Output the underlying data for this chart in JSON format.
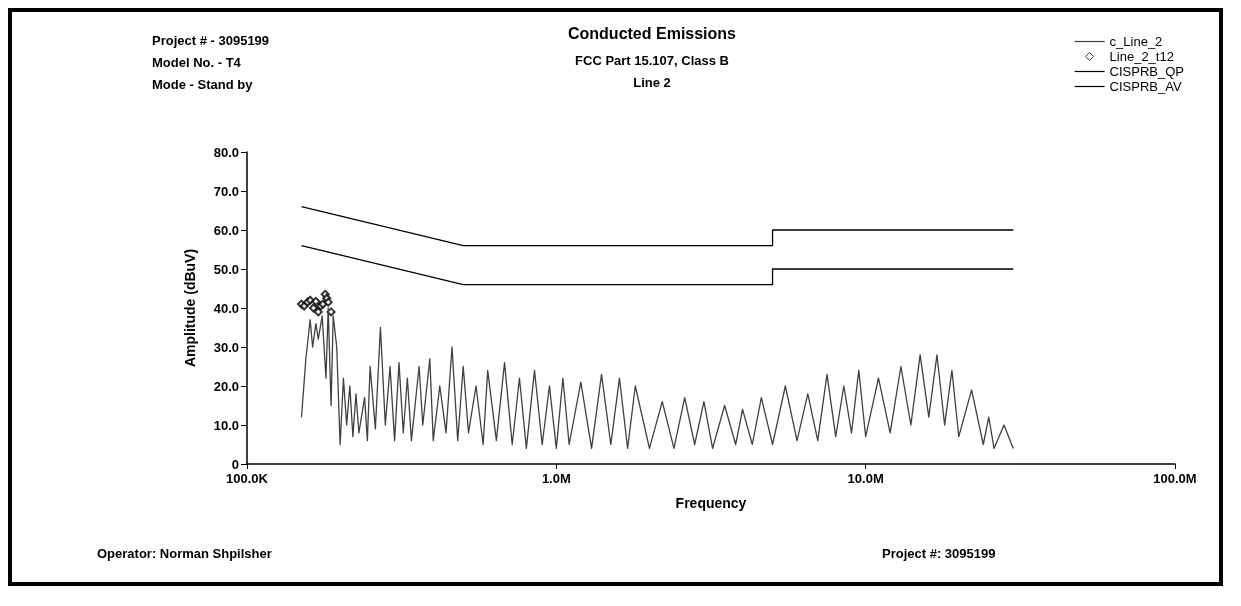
{
  "chart_data": {
    "type": "line",
    "title": "Conducted Emissions",
    "subtitle": "FCC Part 15.107, Class B\nLine 2",
    "xlabel": "Frequency",
    "ylabel": "Amplitude (dBuV)",
    "annotations": [
      "Project # - 3095199",
      "Model No. - T4",
      "Mode - Stand by",
      "Operator: Norman Shpilsher",
      "Project #: 3095199"
    ],
    "log": "x",
    "xlim": [
      100000,
      100000000
    ],
    "xticks": [
      {
        "value": 100000,
        "label": "100.0K"
      },
      {
        "value": 1000000,
        "label": "1.0M"
      },
      {
        "value": 10000000,
        "label": "10.0M"
      },
      {
        "value": 100000000,
        "label": "100.0M"
      }
    ],
    "ylim": [
      0,
      80
    ],
    "yticks": [
      0,
      {
        "value": 10,
        "label": "10.0"
      },
      {
        "value": 20,
        "label": "20.0"
      },
      {
        "value": 30,
        "label": "30.0"
      },
      {
        "value": 40,
        "label": "40.0"
      },
      {
        "value": 50,
        "label": "50.0"
      },
      {
        "value": 60,
        "label": "60.0"
      },
      {
        "value": 70,
        "label": "70.0"
      },
      {
        "value": 80,
        "label": "80.0"
      }
    ],
    "grid": false,
    "legend": "top right",
    "series": [
      {
        "name": "c_Line_2",
        "color": "#404040",
        "x": [
          150000,
          155000,
          160000,
          163000,
          167000,
          170000,
          175000,
          180000,
          183000,
          187000,
          190000,
          195000,
          200000,
          205000,
          210000,
          215000,
          220000,
          225000,
          230000,
          240000,
          245000,
          250000,
          260000,
          270000,
          280000,
          290000,
          300000,
          310000,
          320000,
          330000,
          340000,
          360000,
          370000,
          390000,
          400000,
          420000,
          440000,
          460000,
          480000,
          500000,
          520000,
          550000,
          580000,
          600000,
          640000,
          680000,
          720000,
          760000,
          800000,
          850000,
          900000,
          950000,
          1000000,
          1050000,
          1100000,
          1200000,
          1300000,
          1400000,
          1500000,
          1600000,
          1700000,
          1800000,
          2000000,
          2200000,
          2400000,
          2600000,
          2800000,
          3000000,
          3200000,
          3500000,
          3800000,
          4000000,
          4300000,
          4600000,
          5000000,
          5500000,
          6000000,
          6500000,
          7000000,
          7500000,
          8000000,
          8500000,
          9000000,
          9500000,
          10000000,
          11000000,
          12000000,
          13000000,
          14000000,
          15000000,
          16000000,
          17000000,
          18000000,
          19000000,
          20000000,
          22000000,
          24000000,
          25000000,
          26000000,
          28000000,
          30000000
        ],
        "values": [
          12,
          27,
          37,
          30,
          36,
          32,
          38,
          22,
          40,
          15,
          38,
          30,
          5,
          22,
          10,
          20,
          7,
          18,
          8,
          17,
          6,
          25,
          9,
          35,
          10,
          25,
          6,
          26,
          8,
          22,
          6,
          25,
          10,
          27,
          6,
          20,
          8,
          30,
          6,
          25,
          8,
          20,
          5,
          24,
          6,
          26,
          5,
          22,
          4,
          24,
          5,
          20,
          4,
          22,
          5,
          21,
          4,
          23,
          5,
          22,
          4,
          20,
          4,
          16,
          4,
          17,
          5,
          16,
          4,
          15,
          5,
          14,
          5,
          17,
          5,
          20,
          6,
          18,
          6,
          23,
          7,
          20,
          8,
          24,
          7,
          22,
          8,
          25,
          10,
          28,
          12,
          28,
          10,
          24,
          7,
          19,
          5,
          12,
          4,
          10,
          4
        ]
      },
      {
        "name": "Line_2_t12",
        "type": "scatter",
        "marker": "diamond",
        "color": "#000000",
        "x": [
          150000,
          153000,
          157000,
          160000,
          164000,
          167000,
          170000,
          173000,
          176000,
          179000,
          181000,
          183000,
          187000
        ],
        "values": [
          41,
          40.5,
          41.5,
          42,
          40,
          41.7,
          39,
          40.5,
          41,
          43.5,
          42.5,
          41.5,
          39
        ]
      },
      {
        "name": "CISPRB_QP",
        "color": "#000000",
        "x": [
          150000,
          500000,
          5000000,
          5000000,
          30000000
        ],
        "values": [
          66,
          56,
          56,
          60,
          60
        ]
      },
      {
        "name": "CISPRB_AV",
        "color": "#000000",
        "x": [
          150000,
          500000,
          5000000,
          5000000,
          30000000
        ],
        "values": [
          56,
          46,
          46,
          50,
          50
        ]
      }
    ]
  }
}
